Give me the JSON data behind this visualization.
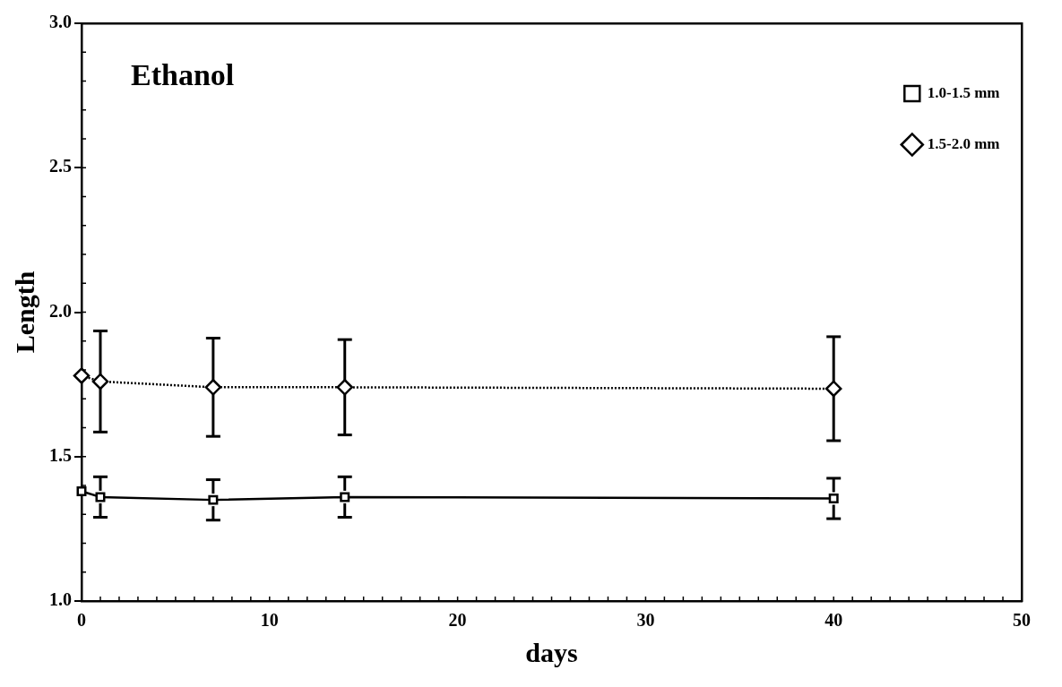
{
  "chart_data": {
    "type": "line",
    "title": "Ethanol",
    "xlabel": "days",
    "ylabel": "Length",
    "x": [
      0,
      1,
      7,
      14,
      40
    ],
    "series": [
      {
        "name": "1.0-1.5 mm",
        "color": "#000000",
        "marker": "square",
        "line_style": "solid",
        "values": [
          1.38,
          1.36,
          1.35,
          1.36,
          1.355
        ],
        "errors": [
          null,
          0.07,
          0.07,
          0.07,
          0.07
        ]
      },
      {
        "name": "1.5-2.0 mm",
        "color": "#000000",
        "marker": "diamond",
        "line_style": "dotted",
        "values": [
          1.78,
          1.76,
          1.74,
          1.74,
          1.735
        ],
        "errors": [
          null,
          0.175,
          0.17,
          0.165,
          0.18
        ]
      }
    ],
    "xlim": [
      0,
      50
    ],
    "xticks": [
      0,
      10,
      20,
      30,
      40,
      50
    ],
    "ylim": [
      1.0,
      3.0
    ],
    "yticks": [
      {
        "value": 1.0,
        "label": "1.0"
      },
      1.5,
      {
        "value": 2.0,
        "label": "2.0"
      },
      2.5,
      {
        "value": 3.0,
        "label": "3.0"
      }
    ],
    "grid": false,
    "legend": "top right"
  }
}
